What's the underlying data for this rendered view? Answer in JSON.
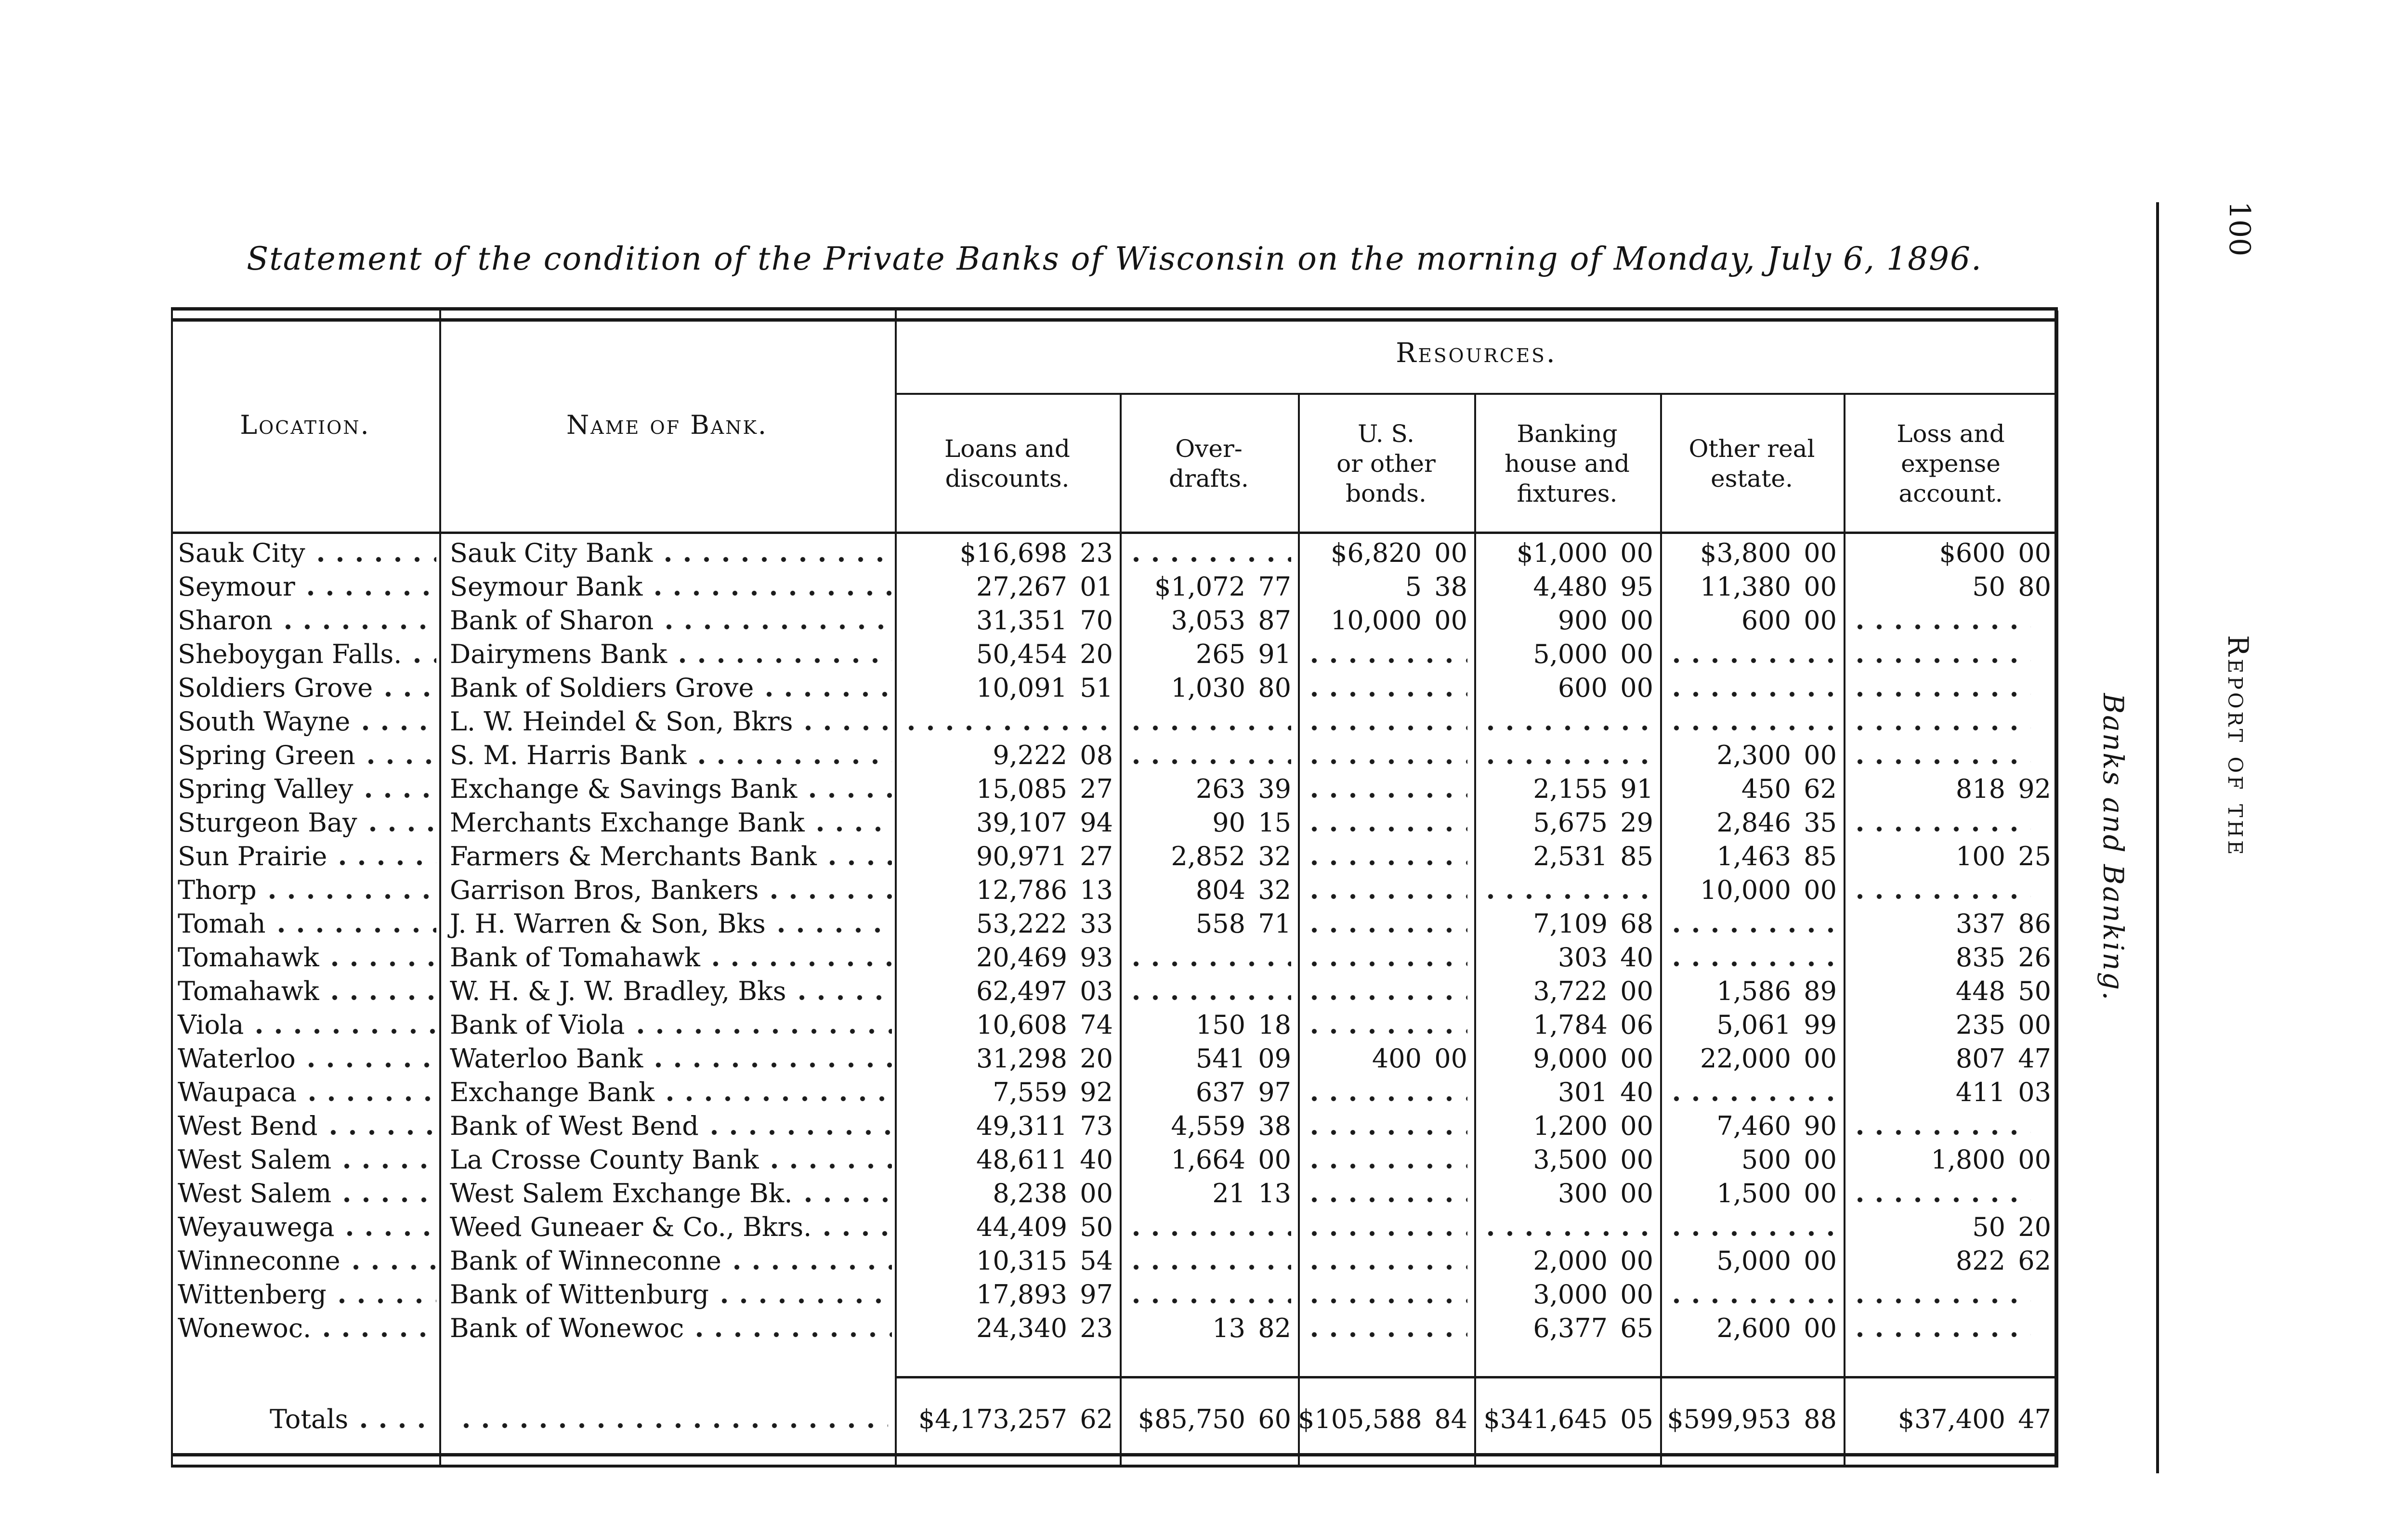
{
  "page": {
    "number": "100",
    "running_head": "Report of the",
    "side_title": "Banks and Banking."
  },
  "title": "Statement of the condition of the Private Banks of Wisconsin on the morning of Monday, July 6, 1896.",
  "table": {
    "resources_label": "Resources.",
    "location_header": "Location.",
    "bank_header": "Name of Bank.",
    "columns": [
      "Loans and\ndiscounts.",
      "Over-\ndrafts.",
      "U. S.\nor other\nbonds.",
      "Banking\nhouse and\nfixtures.",
      "Other real\nestate.",
      "Loss and\nexpense\naccount."
    ],
    "rows": [
      {
        "location": "Sauk City",
        "bank": "Sauk City Bank",
        "loans": "$16,698 23",
        "overdrafts": "",
        "bonds": "$6,820 00",
        "banking_house": "$1,000 00",
        "real_estate": "$3,800 00",
        "loss": "$600 00"
      },
      {
        "location": "Seymour",
        "bank": "Seymour Bank",
        "loans": "27,267 01",
        "overdrafts": "$1,072 77",
        "bonds": "5 38",
        "banking_house": "4,480 95",
        "real_estate": "11,380 00",
        "loss": "50 80"
      },
      {
        "location": "Sharon",
        "bank": "Bank of Sharon",
        "loans": "31,351 70",
        "overdrafts": "3,053 87",
        "bonds": "10,000 00",
        "banking_house": "900 00",
        "real_estate": "600 00",
        "loss": ""
      },
      {
        "location": "Sheboygan Falls.",
        "bank": "Dairymens Bank",
        "loans": "50,454 20",
        "overdrafts": "265 91",
        "bonds": "",
        "banking_house": "5,000 00",
        "real_estate": "",
        "loss": ""
      },
      {
        "location": "Soldiers Grove",
        "bank": "Bank of Soldiers Grove",
        "loans": "10,091 51",
        "overdrafts": "1,030 80",
        "bonds": "",
        "banking_house": "600 00",
        "real_estate": "",
        "loss": ""
      },
      {
        "location": "South Wayne",
        "bank": "L. W. Heindel & Son, Bkrs",
        "loans": "",
        "overdrafts": "",
        "bonds": "",
        "banking_house": "",
        "real_estate": "",
        "loss": ""
      },
      {
        "location": "Spring Green",
        "bank": "S. M. Harris Bank",
        "loans": "9,222 08",
        "overdrafts": "",
        "bonds": "",
        "banking_house": "",
        "real_estate": "2,300 00",
        "loss": ""
      },
      {
        "location": "Spring Valley",
        "bank": "Exchange & Savings Bank",
        "loans": "15,085 27",
        "overdrafts": "263 39",
        "bonds": "",
        "banking_house": "2,155 91",
        "real_estate": "450 62",
        "loss": "818 92"
      },
      {
        "location": "Sturgeon Bay",
        "bank": "Merchants Exchange Bank",
        "loans": "39,107 94",
        "overdrafts": "90 15",
        "bonds": "",
        "banking_house": "5,675 29",
        "real_estate": "2,846 35",
        "loss": ""
      },
      {
        "location": "Sun Prairie",
        "bank": "Farmers & Merchants Bank",
        "loans": "90,971 27",
        "overdrafts": "2,852 32",
        "bonds": "",
        "banking_house": "2,531 85",
        "real_estate": "1,463 85",
        "loss": "100 25"
      },
      {
        "location": "Thorp",
        "bank": "Garrison Bros, Bankers",
        "loans": "12,786 13",
        "overdrafts": "804 32",
        "bonds": "",
        "banking_house": "",
        "real_estate": "10,000 00",
        "loss": ""
      },
      {
        "location": "Tomah",
        "bank": "J. H. Warren & Son, Bks",
        "loans": "53,222 33",
        "overdrafts": "558 71",
        "bonds": "",
        "banking_house": "7,109 68",
        "real_estate": "",
        "loss": "337 86"
      },
      {
        "location": "Tomahawk",
        "bank": "Bank of Tomahawk",
        "loans": "20,469 93",
        "overdrafts": "",
        "bonds": "",
        "banking_house": "303 40",
        "real_estate": "",
        "loss": "835 26"
      },
      {
        "location": "Tomahawk",
        "bank": "W. H. & J. W. Bradley, Bks",
        "loans": "62,497 03",
        "overdrafts": "",
        "bonds": "",
        "banking_house": "3,722 00",
        "real_estate": "1,586 89",
        "loss": "448 50"
      },
      {
        "location": "Viola",
        "bank": "Bank of Viola",
        "loans": "10,608 74",
        "overdrafts": "150 18",
        "bonds": "",
        "banking_house": "1,784 06",
        "real_estate": "5,061 99",
        "loss": "235 00"
      },
      {
        "location": "Waterloo",
        "bank": "Waterloo Bank",
        "loans": "31,298 20",
        "overdrafts": "541 09",
        "bonds": "400 00",
        "banking_house": "9,000 00",
        "real_estate": "22,000 00",
        "loss": "807 47"
      },
      {
        "location": "Waupaca",
        "bank": "Exchange Bank",
        "loans": "7,559 92",
        "overdrafts": "637 97",
        "bonds": "",
        "banking_house": "301 40",
        "real_estate": "",
        "loss": "411 03"
      },
      {
        "location": "West Bend",
        "bank": "Bank of West Bend",
        "loans": "49,311 73",
        "overdrafts": "4,559 38",
        "bonds": "",
        "banking_house": "1,200 00",
        "real_estate": "7,460 90",
        "loss": ""
      },
      {
        "location": "West Salem",
        "bank": "La Crosse County Bank",
        "loans": "48,611 40",
        "overdrafts": "1,664 00",
        "bonds": "",
        "banking_house": "3,500 00",
        "real_estate": "500 00",
        "loss": "1,800 00"
      },
      {
        "location": "West Salem",
        "bank": "West Salem Exchange Bk.",
        "loans": "8,238 00",
        "overdrafts": "21 13",
        "bonds": "",
        "banking_house": "300 00",
        "real_estate": "1,500 00",
        "loss": ""
      },
      {
        "location": "Weyauwega",
        "bank": "Weed Guneaer & Co., Bkrs.",
        "loans": "44,409 50",
        "overdrafts": "",
        "bonds": "",
        "banking_house": "",
        "real_estate": "",
        "loss": "50 20"
      },
      {
        "location": "Winneconne",
        "bank": "Bank of Winneconne",
        "loans": "10,315 54",
        "overdrafts": "",
        "bonds": "",
        "banking_house": "2,000 00",
        "real_estate": "5,000 00",
        "loss": "822 62"
      },
      {
        "location": "Wittenberg",
        "bank": "Bank of Wittenburg",
        "loans": "17,893 97",
        "overdrafts": "",
        "bonds": "",
        "banking_house": "3,000 00",
        "real_estate": "",
        "loss": ""
      },
      {
        "location": "Wonewoc.",
        "bank": "Bank of Wonewoc",
        "loans": "24,340 23",
        "overdrafts": "13 82",
        "bonds": "",
        "banking_house": "6,377 65",
        "real_estate": "2,600 00",
        "loss": ""
      }
    ],
    "totals": {
      "label": "Totals",
      "loans": "$4,173,257 62",
      "overdrafts": "$85,750 60",
      "bonds": "$105,588 84",
      "banking_house": "$341,645 05",
      "real_estate": "$599,953 88",
      "loss": "$37,400 47"
    }
  }
}
